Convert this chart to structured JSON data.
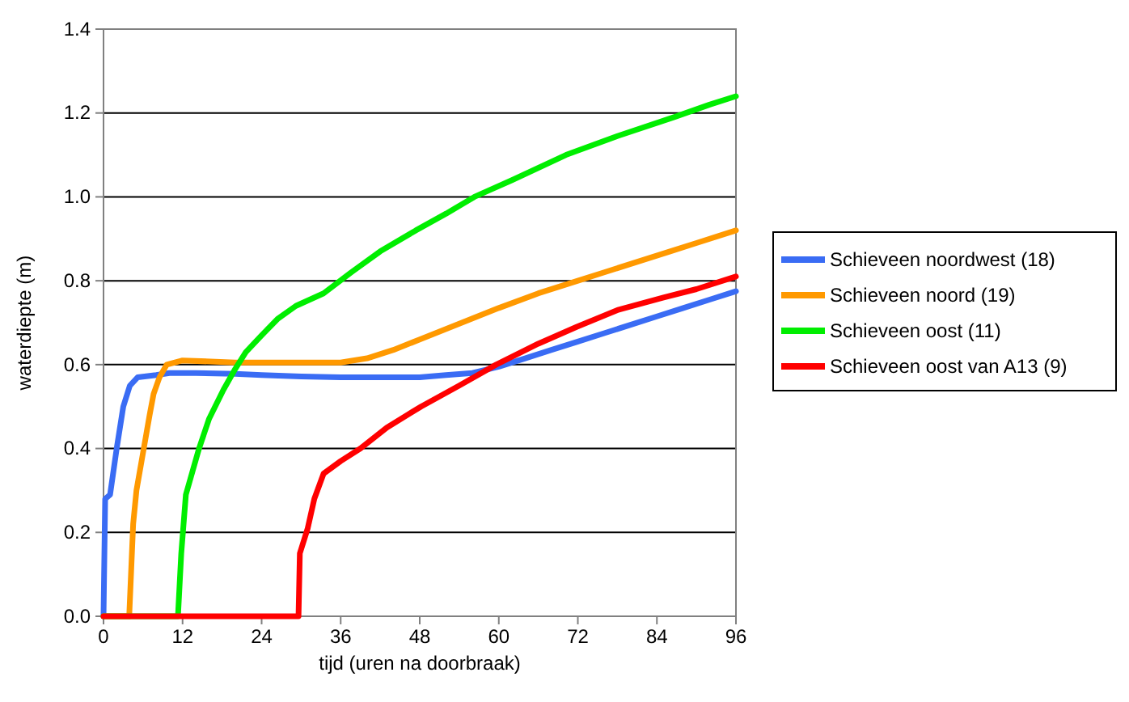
{
  "chart_data": {
    "type": "line",
    "xlabel": "tijd (uren na doorbraak)",
    "ylabel": "waterdiepte (m)",
    "xlim": [
      0,
      96
    ],
    "xticks": [
      0,
      12,
      24,
      36,
      48,
      60,
      72,
      84,
      96
    ],
    "ylim": [
      0,
      1.4
    ],
    "yticks": [
      {
        "value": 0,
        "label": "0.0"
      },
      {
        "value": 0.2,
        "label": "0.2"
      },
      {
        "value": 0.4,
        "label": "0.4"
      },
      {
        "value": 0.6,
        "label": "0.6"
      },
      {
        "value": 0.8,
        "label": "0.8"
      },
      {
        "value": 1,
        "label": "1.0"
      },
      {
        "value": 1.2,
        "label": "1.2"
      },
      {
        "value": 1.4,
        "label": "1.4"
      }
    ],
    "grid": "y",
    "legend": "right",
    "marker": "none",
    "line_style": "solid",
    "series": [
      {
        "name": "Schieveen noordwest (18)",
        "color": "#3a6cf4",
        "x": [
          0,
          0.25,
          1,
          2,
          3,
          4,
          5.2,
          8,
          10,
          14,
          20,
          24,
          30,
          36,
          42,
          48,
          52,
          56,
          60,
          64,
          68,
          72,
          76,
          80,
          84,
          88,
          92,
          96
        ],
        "values": [
          0,
          0.28,
          0.29,
          0.4,
          0.5,
          0.55,
          0.57,
          0.575,
          0.58,
          0.58,
          0.578,
          0.575,
          0.572,
          0.57,
          0.57,
          0.57,
          0.575,
          0.58,
          0.595,
          0.615,
          0.635,
          0.655,
          0.675,
          0.695,
          0.715,
          0.735,
          0.755,
          0.775
        ]
      },
      {
        "name": "Schieveen noord (19)",
        "color": "#ff9900",
        "x": [
          0,
          3.9,
          4.5,
          5,
          6,
          7,
          7.6,
          8.5,
          9.6,
          12,
          20,
          30,
          36,
          40,
          44,
          48,
          52,
          56,
          60,
          66,
          72,
          76,
          80,
          86,
          90,
          96
        ],
        "values": [
          0,
          0,
          0.22,
          0.3,
          0.39,
          0.48,
          0.53,
          0.57,
          0.6,
          0.61,
          0.605,
          0.605,
          0.605,
          0.615,
          0.635,
          0.66,
          0.685,
          0.71,
          0.735,
          0.77,
          0.8,
          0.82,
          0.84,
          0.87,
          0.89,
          0.92
        ]
      },
      {
        "name": "Schieveen oost (11)",
        "color": "#00ee00",
        "x": [
          0,
          11.3,
          11.8,
          12.5,
          14.5,
          16,
          18.2,
          20,
          21.6,
          24,
          26.5,
          29.2,
          33.4,
          37.6,
          42,
          47.4,
          52,
          56.3,
          62,
          70.2,
          78,
          86.6,
          92,
          96
        ],
        "values": [
          0,
          0,
          0.15,
          0.29,
          0.4,
          0.47,
          0.54,
          0.59,
          0.63,
          0.67,
          0.71,
          0.74,
          0.77,
          0.82,
          0.87,
          0.92,
          0.96,
          1.0,
          1.04,
          1.1,
          1.145,
          1.19,
          1.22,
          1.24
        ]
      },
      {
        "name": "Schieveen oost van A13 (9)",
        "color": "#ff0000",
        "x": [
          0,
          29.6,
          29.8,
          31,
          32,
          33.4,
          36,
          39,
          43,
          48.2,
          54,
          59.6,
          66,
          71.8,
          78,
          85,
          90,
          96
        ],
        "values": [
          0,
          0,
          0.15,
          0.21,
          0.28,
          0.34,
          0.37,
          0.4,
          0.45,
          0.5,
          0.55,
          0.6,
          0.65,
          0.69,
          0.73,
          0.76,
          0.78,
          0.81
        ]
      }
    ]
  }
}
